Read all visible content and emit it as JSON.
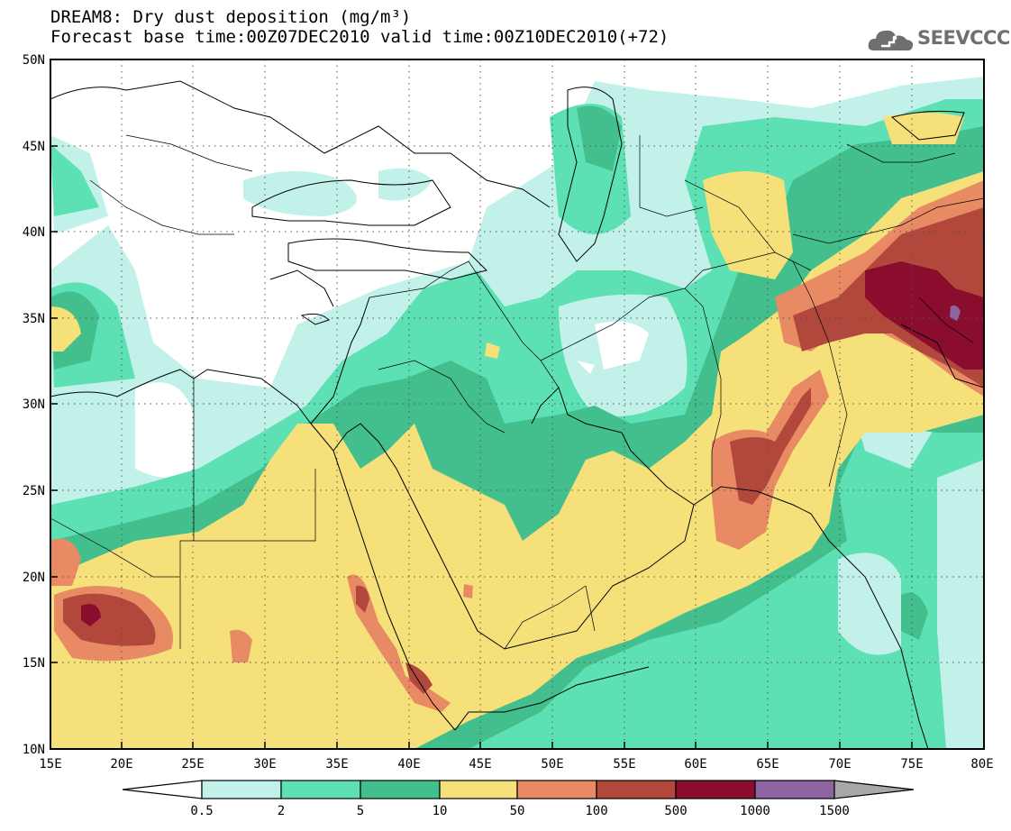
{
  "title": {
    "line1": "DREAM8: Dry dust deposition (mg/m³)",
    "line2": "Forecast base time:00Z07DEC2010 valid time:00Z10DEC2010(+72)"
  },
  "logo": {
    "text": "SEEVCCC",
    "icon": "cloud-icon"
  },
  "map": {
    "lon_range": [
      15,
      80
    ],
    "lat_range": [
      10,
      50
    ],
    "lon_tick_labels": [
      "15E",
      "20E",
      "25E",
      "30E",
      "35E",
      "40E",
      "45E",
      "50E",
      "55E",
      "60E",
      "65E",
      "70E",
      "75E",
      "80E"
    ],
    "lat_tick_labels": [
      "10N",
      "15N",
      "20N",
      "25N",
      "30N",
      "35N",
      "40N",
      "45N",
      "50N"
    ],
    "grid": "dotted"
  },
  "colorbar": {
    "labels": [
      "0.5",
      "2",
      "5",
      "10",
      "50",
      "100",
      "500",
      "1000",
      "1500"
    ],
    "colors": [
      "#ffffff",
      "#c2f1e9",
      "#5ce0b4",
      "#43bf8e",
      "#f5e079",
      "#e88a64",
      "#b2473c",
      "#8a0d2e",
      "#8e64a3",
      "#a8a8a8"
    ]
  }
}
